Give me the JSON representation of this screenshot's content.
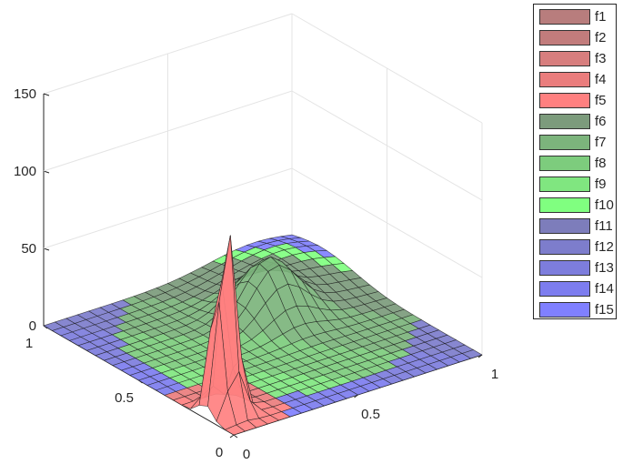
{
  "chart_data": {
    "type": "surface",
    "title": "",
    "xlabel": "",
    "ylabel": "",
    "zlabel": "",
    "xlim": [
      0,
      1
    ],
    "ylim": [
      0,
      1
    ],
    "zlim": [
      0,
      150
    ],
    "x_ticks": [
      "0",
      "0.5",
      "1"
    ],
    "y_ticks": [
      "0",
      "0.5",
      "1"
    ],
    "z_ticks": [
      "0",
      "50",
      "100",
      "150"
    ],
    "grid": true,
    "legend_position": "top-right",
    "series": [
      {
        "name": "f1",
        "color": "#b87d7d"
      },
      {
        "name": "f2",
        "color": "#c27c7c"
      },
      {
        "name": "f3",
        "color": "#d77e7e"
      },
      {
        "name": "f4",
        "color": "#ea7d7d"
      },
      {
        "name": "f5",
        "color": "#ff8080"
      },
      {
        "name": "f6",
        "color": "#7c9b7c"
      },
      {
        "name": "f7",
        "color": "#7cb47c"
      },
      {
        "name": "f8",
        "color": "#7dcc7d"
      },
      {
        "name": "f9",
        "color": "#80e680"
      },
      {
        "name": "f10",
        "color": "#80ff80"
      },
      {
        "name": "f11",
        "color": "#7d7dbb"
      },
      {
        "name": "f12",
        "color": "#7d7dcc"
      },
      {
        "name": "f13",
        "color": "#7d7ddd"
      },
      {
        "name": "f14",
        "color": "#7d7def"
      },
      {
        "name": "f15",
        "color": "#8080ff"
      }
    ],
    "peaks": [
      {
        "x": 0.08,
        "y": 0.15,
        "z": 130,
        "width": 0.035,
        "region": "red"
      },
      {
        "x": 0.62,
        "y": 0.62,
        "z": 35,
        "width": 0.09,
        "region": "green"
      },
      {
        "x": 0.85,
        "y": 0.85,
        "z": 14,
        "width": 0.18,
        "region": "blue"
      }
    ]
  }
}
